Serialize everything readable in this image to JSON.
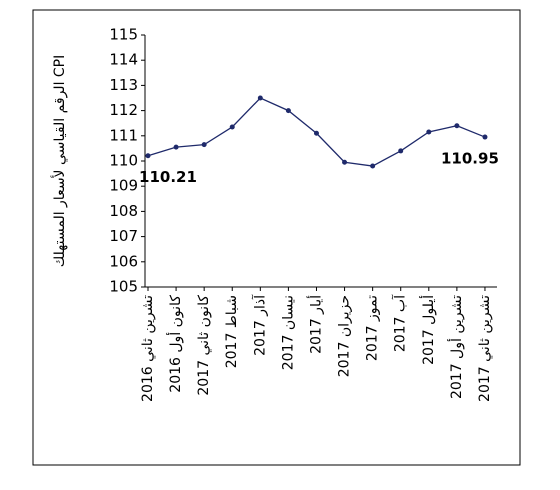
{
  "chart_data": {
    "type": "line",
    "y_label": "الرقم القياسي لأسعار المستهلك  CPI",
    "categories": [
      "تشرين ثاني 2016",
      "كانون أول 2016",
      "كانون ثاني 2017",
      "شباط 2017",
      "آذار 2017",
      "نيسان 2017",
      "أيار 2017",
      "حزيران 2017",
      "تموز 2017",
      "آب 2017",
      "أيلول 2017",
      "تشرين أول 2017",
      "تشرين ثاني 2017"
    ],
    "values": [
      110.21,
      110.55,
      110.65,
      111.35,
      112.5,
      112.0,
      111.1,
      109.95,
      109.8,
      110.4,
      111.15,
      111.4,
      110.95
    ],
    "value_labels": [
      "110.21",
      null,
      null,
      null,
      null,
      null,
      null,
      null,
      null,
      null,
      null,
      null,
      "110.95"
    ],
    "color": "#1f2a6b",
    "ylim": [
      105,
      115
    ],
    "yticks": [
      105,
      106,
      107,
      108,
      109,
      110,
      111,
      112,
      113,
      114,
      115
    ]
  }
}
